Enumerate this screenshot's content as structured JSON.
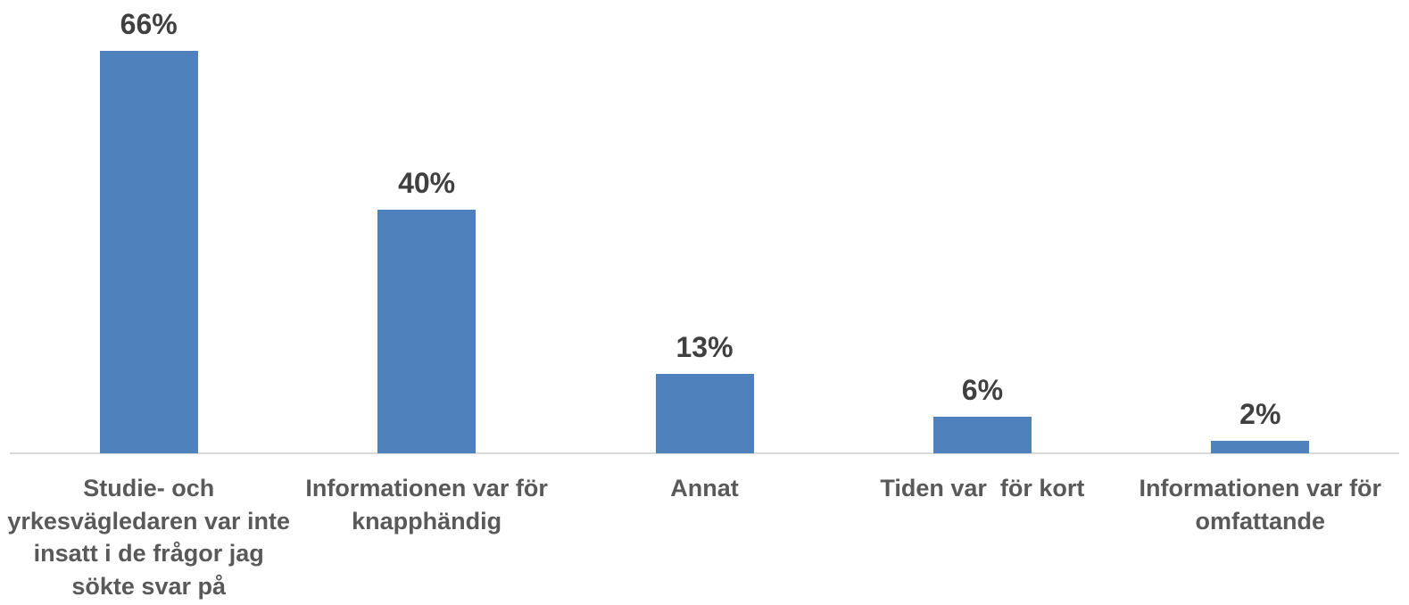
{
  "chart_data": {
    "type": "bar",
    "categories": [
      "Studie- och yrkesvägledaren var inte insatt i de frågor jag sökte svar på",
      "Informationen var för knapphändig",
      "Annat",
      "Tiden var  för kort",
      "Informationen var för omfattande"
    ],
    "values": [
      66,
      40,
      13,
      6,
      2
    ],
    "value_labels": [
      "66%",
      "40%",
      "13%",
      "6%",
      "2%"
    ],
    "color": "#4f81bd"
  }
}
